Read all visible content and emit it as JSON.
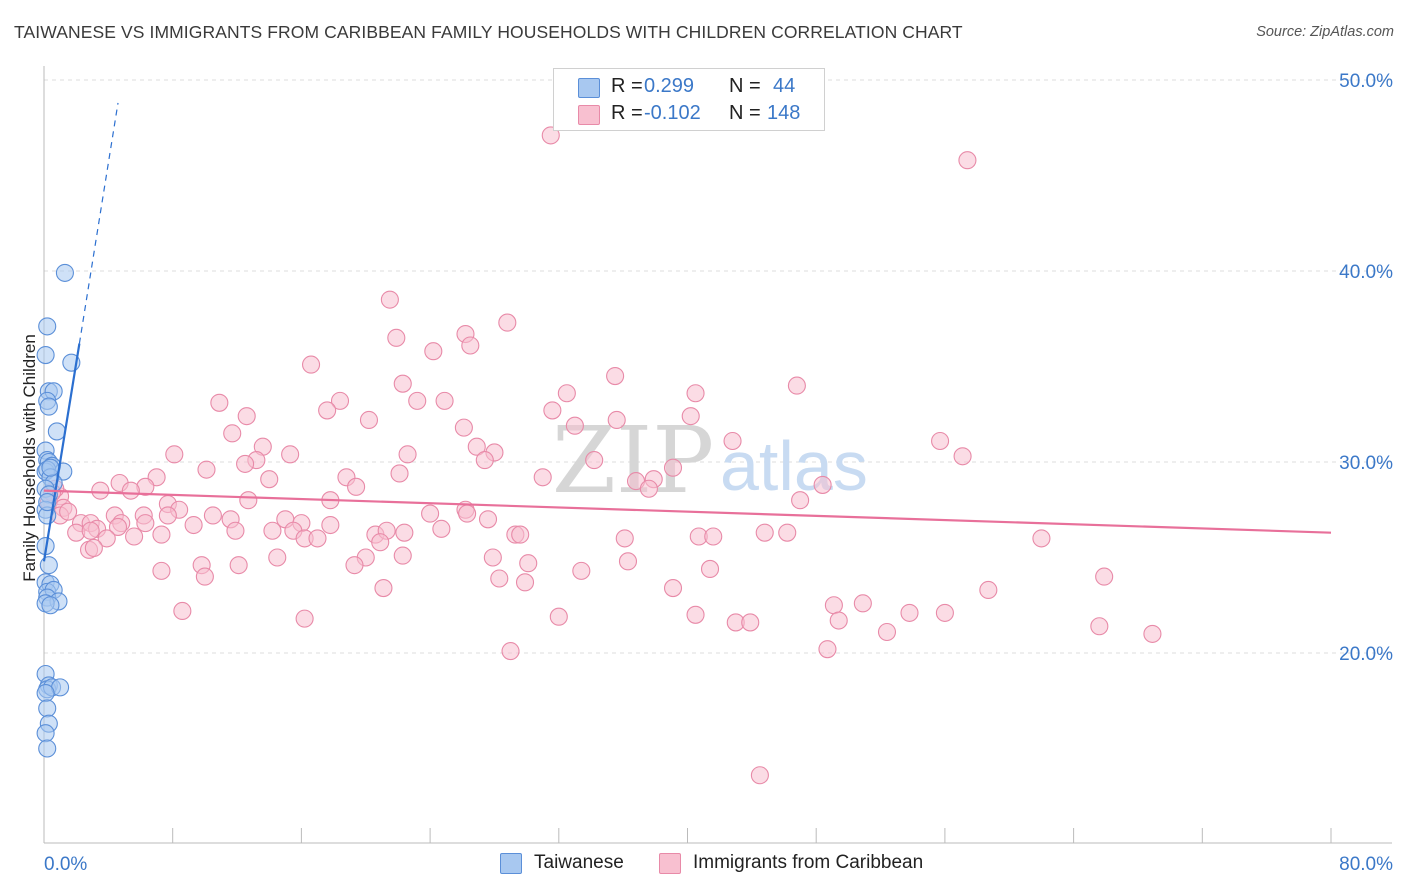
{
  "title": "TAIWANESE VS IMMIGRANTS FROM CARIBBEAN FAMILY HOUSEHOLDS WITH CHILDREN CORRELATION CHART",
  "source": "Source: ZipAtlas.com",
  "watermark": {
    "zip": "ZIP",
    "atlas": "atlas"
  },
  "legend_top": [
    {
      "r_label": "R =",
      "r_value": "0.299",
      "n_label": "N =",
      "n_value": "44",
      "fill": "#a8c8f0",
      "stroke": "#5b8fd8"
    },
    {
      "r_label": "R =",
      "r_value": "-0.102",
      "n_label": "N =",
      "n_value": "148",
      "fill": "#f8c0d0",
      "stroke": "#e88aa8"
    }
  ],
  "legend_bottom": [
    {
      "label": "Taiwanese",
      "fill": "#a8c8f0",
      "stroke": "#5b8fd8"
    },
    {
      "label": "Immigrants from Caribbean",
      "fill": "#f8c0d0",
      "stroke": "#e88aa8"
    }
  ],
  "chart_data": {
    "type": "scatter",
    "title": "TAIWANESE VS IMMIGRANTS FROM CARIBBEAN FAMILY HOUSEHOLDS WITH CHILDREN CORRELATION CHART",
    "xlabel": "",
    "ylabel": "Family Households with Children",
    "xlim": [
      0,
      80
    ],
    "ylim": [
      10,
      52
    ],
    "x_tick_labels": [
      {
        "value": 0,
        "label": "0.0%"
      },
      {
        "value": 80,
        "label": "80.0%"
      }
    ],
    "y_tick_labels": [
      {
        "value": 20,
        "label": "20.0%"
      },
      {
        "value": 30,
        "label": "30.0%"
      },
      {
        "value": 40,
        "label": "40.0%"
      },
      {
        "value": 50,
        "label": "50.0%"
      }
    ],
    "grid": true,
    "series": [
      {
        "name": "Taiwanese",
        "color": "#5b8fd8",
        "fill": "#a8c8f0",
        "trend": {
          "x": [
            0.0,
            2.2
          ],
          "y": [
            24.8,
            36.2
          ],
          "dashed_to": {
            "x": 4.6,
            "y": 48.8
          },
          "color": "#2b6fd0"
        },
        "points": [
          [
            1.3,
            39.9
          ],
          [
            0.2,
            37.1
          ],
          [
            0.1,
            35.6
          ],
          [
            1.7,
            35.2
          ],
          [
            0.3,
            33.7
          ],
          [
            0.6,
            33.7
          ],
          [
            0.2,
            33.2
          ],
          [
            0.3,
            32.9
          ],
          [
            0.8,
            31.6
          ],
          [
            0.1,
            30.6
          ],
          [
            0.2,
            30.1
          ],
          [
            0.3,
            30.0
          ],
          [
            0.5,
            29.8
          ],
          [
            0.1,
            29.5
          ],
          [
            0.2,
            29.6
          ],
          [
            1.2,
            29.5
          ],
          [
            0.4,
            29.2
          ],
          [
            0.6,
            28.9
          ],
          [
            0.1,
            28.6
          ],
          [
            0.3,
            28.3
          ],
          [
            0.1,
            27.5
          ],
          [
            0.2,
            27.2
          ],
          [
            0.1,
            25.6
          ],
          [
            0.3,
            24.6
          ],
          [
            0.1,
            23.7
          ],
          [
            0.4,
            23.6
          ],
          [
            0.2,
            23.2
          ],
          [
            0.6,
            23.3
          ],
          [
            0.2,
            22.9
          ],
          [
            0.9,
            22.7
          ],
          [
            0.1,
            22.6
          ],
          [
            0.4,
            22.5
          ],
          [
            0.1,
            18.9
          ],
          [
            0.3,
            18.3
          ],
          [
            0.2,
            18.1
          ],
          [
            0.5,
            18.2
          ],
          [
            1.0,
            18.2
          ],
          [
            0.1,
            17.9
          ],
          [
            0.2,
            17.1
          ],
          [
            0.3,
            16.3
          ],
          [
            0.1,
            15.8
          ],
          [
            0.2,
            15.0
          ],
          [
            0.4,
            29.7
          ],
          [
            0.2,
            27.9
          ]
        ]
      },
      {
        "name": "Immigrants from Caribbean",
        "color": "#e88aa8",
        "fill": "#f8c0d0",
        "trend": {
          "x": [
            0,
            80
          ],
          "y": [
            28.5,
            26.3
          ],
          "color": "#e8709a"
        },
        "points": [
          [
            31.5,
            47.1
          ],
          [
            57.4,
            45.8
          ],
          [
            21.5,
            38.5
          ],
          [
            28.8,
            37.3
          ],
          [
            26.2,
            36.7
          ],
          [
            21.9,
            36.5
          ],
          [
            26.5,
            36.1
          ],
          [
            24.2,
            35.8
          ],
          [
            16.6,
            35.1
          ],
          [
            35.5,
            34.5
          ],
          [
            22.3,
            34.1
          ],
          [
            46.8,
            34.0
          ],
          [
            32.5,
            33.6
          ],
          [
            40.5,
            33.6
          ],
          [
            18.4,
            33.2
          ],
          [
            23.2,
            33.2
          ],
          [
            24.9,
            33.2
          ],
          [
            10.9,
            33.1
          ],
          [
            31.6,
            32.7
          ],
          [
            17.6,
            32.7
          ],
          [
            12.6,
            32.4
          ],
          [
            20.2,
            32.2
          ],
          [
            40.2,
            32.4
          ],
          [
            35.6,
            32.2
          ],
          [
            33.0,
            31.9
          ],
          [
            26.1,
            31.8
          ],
          [
            11.7,
            31.5
          ],
          [
            55.7,
            31.1
          ],
          [
            42.8,
            31.1
          ],
          [
            13.6,
            30.8
          ],
          [
            26.9,
            30.8
          ],
          [
            8.1,
            30.4
          ],
          [
            15.3,
            30.4
          ],
          [
            22.6,
            30.4
          ],
          [
            28.0,
            30.5
          ],
          [
            57.1,
            30.3
          ],
          [
            13.2,
            30.1
          ],
          [
            27.4,
            30.1
          ],
          [
            34.2,
            30.1
          ],
          [
            12.5,
            29.9
          ],
          [
            10.1,
            29.6
          ],
          [
            22.1,
            29.4
          ],
          [
            39.1,
            29.7
          ],
          [
            7.0,
            29.2
          ],
          [
            18.8,
            29.2
          ],
          [
            14.0,
            29.1
          ],
          [
            31.0,
            29.2
          ],
          [
            36.8,
            29.0
          ],
          [
            37.9,
            29.1
          ],
          [
            48.4,
            28.8
          ],
          [
            4.7,
            28.9
          ],
          [
            6.3,
            28.7
          ],
          [
            19.4,
            28.7
          ],
          [
            37.6,
            28.6
          ],
          [
            5.4,
            28.5
          ],
          [
            3.5,
            28.5
          ],
          [
            1.0,
            28.2
          ],
          [
            0.7,
            28.6
          ],
          [
            0.5,
            28.4
          ],
          [
            12.7,
            28.0
          ],
          [
            17.8,
            28.0
          ],
          [
            47.0,
            28.0
          ],
          [
            7.7,
            27.8
          ],
          [
            0.3,
            27.9
          ],
          [
            1.2,
            27.6
          ],
          [
            8.4,
            27.5
          ],
          [
            26.2,
            27.5
          ],
          [
            24.0,
            27.3
          ],
          [
            4.4,
            27.2
          ],
          [
            6.2,
            27.2
          ],
          [
            7.7,
            27.2
          ],
          [
            10.5,
            27.2
          ],
          [
            11.6,
            27.0
          ],
          [
            1.0,
            27.2
          ],
          [
            1.5,
            27.4
          ],
          [
            26.3,
            27.3
          ],
          [
            15.0,
            27.0
          ],
          [
            16.0,
            26.8
          ],
          [
            17.8,
            26.7
          ],
          [
            27.6,
            27.0
          ],
          [
            4.8,
            26.8
          ],
          [
            6.3,
            26.8
          ],
          [
            2.3,
            26.8
          ],
          [
            2.9,
            26.8
          ],
          [
            3.3,
            26.5
          ],
          [
            4.6,
            26.6
          ],
          [
            9.3,
            26.7
          ],
          [
            11.9,
            26.4
          ],
          [
            14.2,
            26.4
          ],
          [
            15.5,
            26.4
          ],
          [
            16.2,
            26.0
          ],
          [
            17.0,
            26.0
          ],
          [
            20.6,
            26.2
          ],
          [
            21.3,
            26.4
          ],
          [
            22.4,
            26.3
          ],
          [
            24.7,
            26.5
          ],
          [
            29.3,
            26.2
          ],
          [
            29.6,
            26.2
          ],
          [
            44.8,
            26.3
          ],
          [
            46.2,
            26.3
          ],
          [
            36.1,
            26.0
          ],
          [
            40.7,
            26.1
          ],
          [
            41.6,
            26.1
          ],
          [
            2.0,
            26.3
          ],
          [
            2.9,
            26.4
          ],
          [
            3.9,
            26.0
          ],
          [
            5.6,
            26.1
          ],
          [
            7.3,
            26.2
          ],
          [
            20.9,
            25.8
          ],
          [
            62.0,
            26.0
          ],
          [
            2.8,
            25.4
          ],
          [
            3.1,
            25.5
          ],
          [
            14.5,
            25.0
          ],
          [
            20.0,
            25.0
          ],
          [
            22.3,
            25.1
          ],
          [
            27.9,
            25.0
          ],
          [
            19.3,
            24.6
          ],
          [
            30.1,
            24.7
          ],
          [
            36.3,
            24.8
          ],
          [
            9.8,
            24.6
          ],
          [
            12.1,
            24.6
          ],
          [
            7.3,
            24.3
          ],
          [
            10.0,
            24.0
          ],
          [
            33.4,
            24.3
          ],
          [
            41.4,
            24.4
          ],
          [
            28.3,
            23.9
          ],
          [
            29.9,
            23.7
          ],
          [
            65.9,
            24.0
          ],
          [
            21.1,
            23.4
          ],
          [
            39.1,
            23.4
          ],
          [
            58.7,
            23.3
          ],
          [
            49.1,
            22.5
          ],
          [
            50.9,
            22.6
          ],
          [
            8.6,
            22.2
          ],
          [
            40.5,
            22.0
          ],
          [
            53.8,
            22.1
          ],
          [
            56.0,
            22.1
          ],
          [
            16.2,
            21.8
          ],
          [
            32.0,
            21.9
          ],
          [
            49.4,
            21.7
          ],
          [
            43.0,
            21.6
          ],
          [
            43.9,
            21.6
          ],
          [
            65.6,
            21.4
          ],
          [
            52.4,
            21.1
          ],
          [
            68.9,
            21.0
          ],
          [
            29.0,
            20.1
          ],
          [
            48.7,
            20.2
          ],
          [
            44.5,
            13.6
          ]
        ]
      }
    ]
  }
}
